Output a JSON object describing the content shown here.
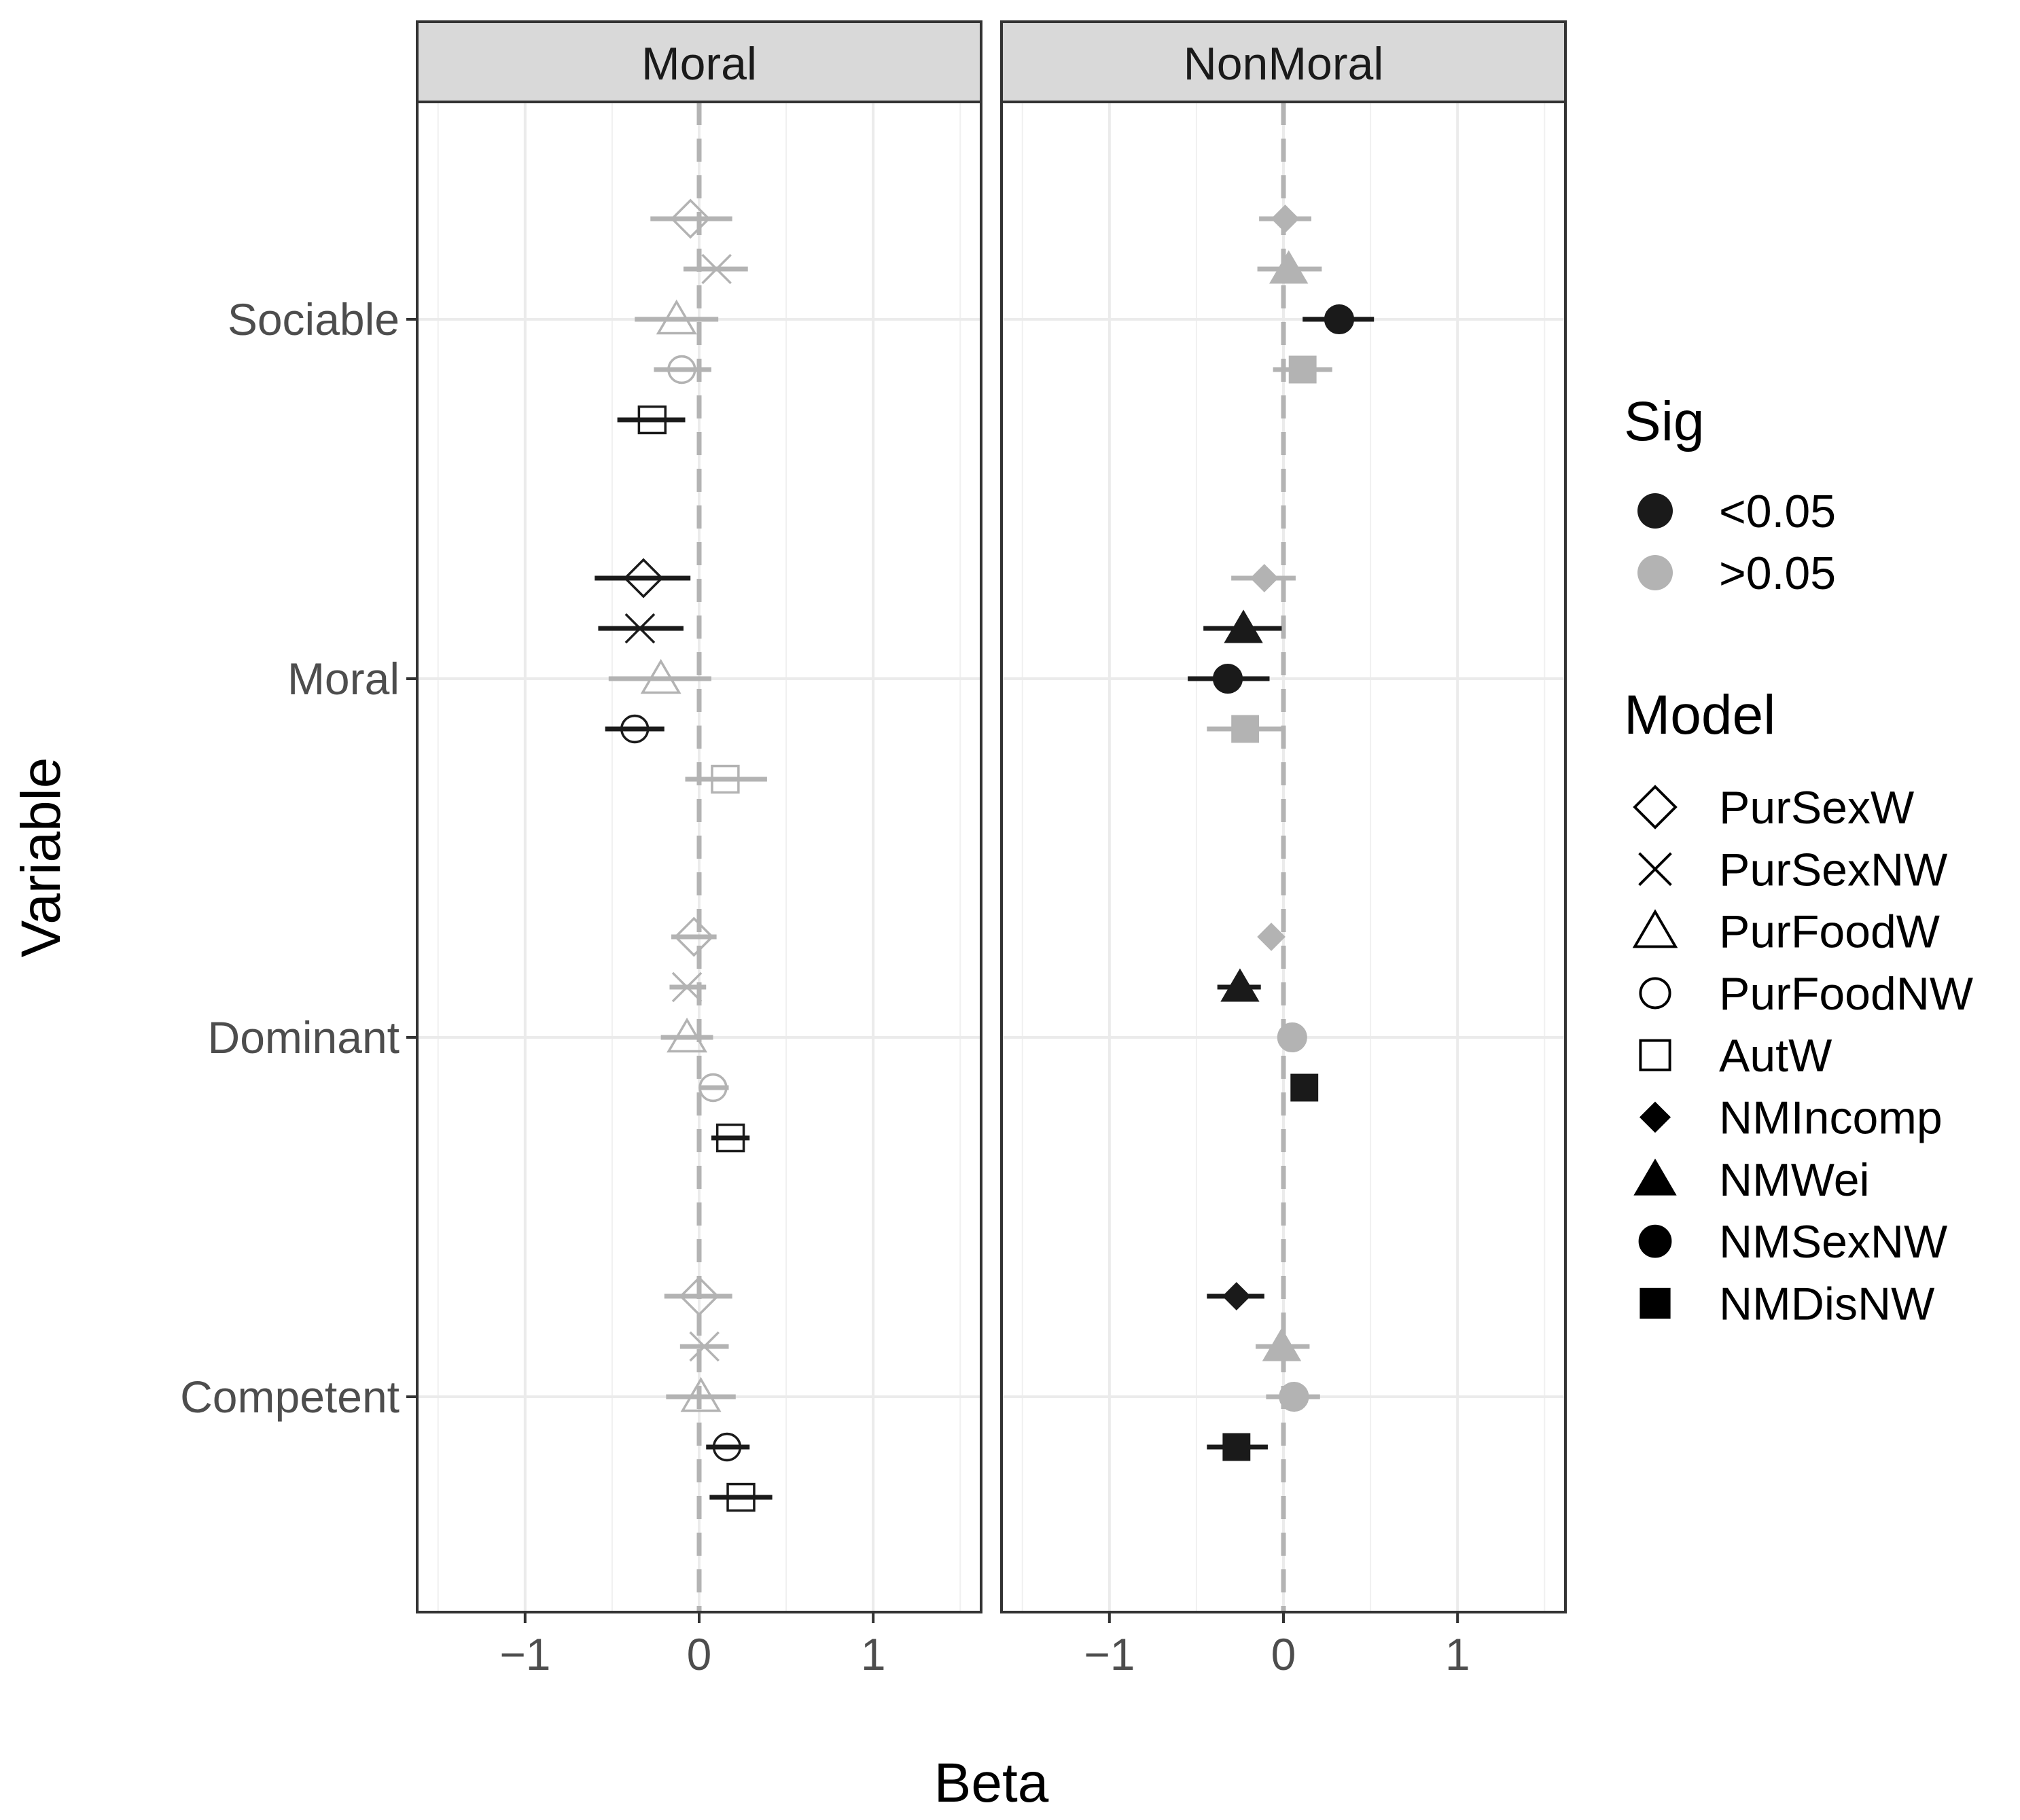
{
  "chart_data": {
    "type": "scatter",
    "subtype": "coefficient-plot-with-error-bars",
    "xlabel": "Beta",
    "ylabel": "Variable",
    "xlim": [
      -1.62,
      1.62
    ],
    "x_ticks": [
      -1,
      0,
      1
    ],
    "x_tick_labels": [
      "−1",
      "0",
      "1"
    ],
    "grid": true,
    "reference_line": 0,
    "categories": [
      "Sociable",
      "Moral",
      "Dominant",
      "Competent"
    ],
    "facets": [
      "Moral",
      "NonMoral"
    ],
    "legend": {
      "position": "right",
      "sig_title": "Sig",
      "sig_levels": [
        {
          "label": "<0.05",
          "color": "#1a1a1a"
        },
        {
          "label": ">0.05",
          "color": "#b3b3b3"
        }
      ],
      "model_title": "Model",
      "models": [
        {
          "label": "PurSexW",
          "shape": "diamond-open"
        },
        {
          "label": "PurSexNW",
          "shape": "cross"
        },
        {
          "label": "PurFoodW",
          "shape": "triangle-open"
        },
        {
          "label": "PurFoodNW",
          "shape": "circle-open"
        },
        {
          "label": "AutW",
          "shape": "square-open"
        },
        {
          "label": "NMIncomp",
          "shape": "diamond-filled"
        },
        {
          "label": "NMWei",
          "shape": "triangle-filled"
        },
        {
          "label": "NMSexNW",
          "shape": "circle-filled"
        },
        {
          "label": "NMDisNW",
          "shape": "square-filled"
        }
      ]
    },
    "panels": [
      {
        "facet": "Moral",
        "series": [
          {
            "name": "PurSexW",
            "shape": "diamond-open",
            "points": [
              {
                "variable": "Sociable",
                "beta": -0.05,
                "lo": -0.28,
                "hi": 0.19,
                "sig": ">0.05"
              },
              {
                "variable": "Moral",
                "beta": -0.32,
                "lo": -0.6,
                "hi": -0.05,
                "sig": "<0.05"
              },
              {
                "variable": "Dominant",
                "beta": -0.03,
                "lo": -0.16,
                "hi": 0.1,
                "sig": ">0.05"
              },
              {
                "variable": "Competent",
                "beta": 0.0,
                "lo": -0.2,
                "hi": 0.19,
                "sig": ">0.05"
              }
            ]
          },
          {
            "name": "PurSexNW",
            "shape": "cross",
            "points": [
              {
                "variable": "Sociable",
                "beta": 0.1,
                "lo": -0.09,
                "hi": 0.28,
                "sig": ">0.05"
              },
              {
                "variable": "Moral",
                "beta": -0.34,
                "lo": -0.58,
                "hi": -0.09,
                "sig": "<0.05"
              },
              {
                "variable": "Dominant",
                "beta": -0.07,
                "lo": -0.17,
                "hi": 0.04,
                "sig": ">0.05"
              },
              {
                "variable": "Competent",
                "beta": 0.03,
                "lo": -0.11,
                "hi": 0.17,
                "sig": ">0.05"
              }
            ]
          },
          {
            "name": "PurFoodW",
            "shape": "triangle-open",
            "points": [
              {
                "variable": "Sociable",
                "beta": -0.13,
                "lo": -0.37,
                "hi": 0.11,
                "sig": ">0.05"
              },
              {
                "variable": "Moral",
                "beta": -0.22,
                "lo": -0.52,
                "hi": 0.07,
                "sig": ">0.05"
              },
              {
                "variable": "Dominant",
                "beta": -0.07,
                "lo": -0.22,
                "hi": 0.08,
                "sig": ">0.05"
              },
              {
                "variable": "Competent",
                "beta": 0.01,
                "lo": -0.19,
                "hi": 0.21,
                "sig": ">0.05"
              }
            ]
          },
          {
            "name": "PurFoodNW",
            "shape": "circle-open",
            "points": [
              {
                "variable": "Sociable",
                "beta": -0.1,
                "lo": -0.26,
                "hi": 0.07,
                "sig": ">0.05"
              },
              {
                "variable": "Moral",
                "beta": -0.37,
                "lo": -0.54,
                "hi": -0.2,
                "sig": "<0.05"
              },
              {
                "variable": "Dominant",
                "beta": 0.08,
                "lo": 0.0,
                "hi": 0.17,
                "sig": ">0.05"
              },
              {
                "variable": "Competent",
                "beta": 0.16,
                "lo": 0.04,
                "hi": 0.29,
                "sig": "<0.05"
              }
            ]
          },
          {
            "name": "AutW",
            "shape": "square-open",
            "points": [
              {
                "variable": "Sociable",
                "beta": -0.27,
                "lo": -0.47,
                "hi": -0.08,
                "sig": "<0.05"
              },
              {
                "variable": "Moral",
                "beta": 0.15,
                "lo": -0.08,
                "hi": 0.39,
                "sig": ">0.05"
              },
              {
                "variable": "Dominant",
                "beta": 0.18,
                "lo": 0.07,
                "hi": 0.29,
                "sig": "<0.05"
              },
              {
                "variable": "Competent",
                "beta": 0.24,
                "lo": 0.06,
                "hi": 0.42,
                "sig": "<0.05"
              }
            ]
          }
        ]
      },
      {
        "facet": "NonMoral",
        "series": [
          {
            "name": "NMIncomp",
            "shape": "diamond-filled",
            "points": [
              {
                "variable": "Sociable",
                "beta": 0.01,
                "lo": -0.14,
                "hi": 0.16,
                "sig": ">0.05"
              },
              {
                "variable": "Moral",
                "beta": -0.11,
                "lo": -0.3,
                "hi": 0.07,
                "sig": ">0.05"
              },
              {
                "variable": "Dominant",
                "beta": -0.07,
                "lo": -0.07,
                "hi": -0.07,
                "sig": ">0.05"
              },
              {
                "variable": "Competent",
                "beta": -0.27,
                "lo": -0.44,
                "hi": -0.11,
                "sig": "<0.05"
              }
            ]
          },
          {
            "name": "NMWei",
            "shape": "triangle-filled",
            "points": [
              {
                "variable": "Sociable",
                "beta": 0.03,
                "lo": -0.15,
                "hi": 0.22,
                "sig": ">0.05"
              },
              {
                "variable": "Moral",
                "beta": -0.23,
                "lo": -0.46,
                "hi": -0.01,
                "sig": "<0.05"
              },
              {
                "variable": "Dominant",
                "beta": -0.25,
                "lo": -0.38,
                "hi": -0.13,
                "sig": "<0.05"
              },
              {
                "variable": "Competent",
                "beta": -0.01,
                "lo": -0.16,
                "hi": 0.15,
                "sig": ">0.05"
              }
            ]
          },
          {
            "name": "NMSexNW",
            "shape": "circle-filled",
            "points": [
              {
                "variable": "Sociable",
                "beta": 0.32,
                "lo": 0.11,
                "hi": 0.52,
                "sig": "<0.05"
              },
              {
                "variable": "Moral",
                "beta": -0.32,
                "lo": -0.55,
                "hi": -0.08,
                "sig": "<0.05"
              },
              {
                "variable": "Dominant",
                "beta": 0.05,
                "lo": -0.03,
                "hi": 0.13,
                "sig": ">0.05"
              },
              {
                "variable": "Competent",
                "beta": 0.06,
                "lo": -0.1,
                "hi": 0.21,
                "sig": ">0.05"
              }
            ]
          },
          {
            "name": "NMDisNW",
            "shape": "square-filled",
            "points": [
              {
                "variable": "Sociable",
                "beta": 0.11,
                "lo": -0.06,
                "hi": 0.28,
                "sig": ">0.05"
              },
              {
                "variable": "Moral",
                "beta": -0.22,
                "lo": -0.44,
                "hi": 0.0,
                "sig": ">0.05"
              },
              {
                "variable": "Dominant",
                "beta": 0.12,
                "lo": 0.12,
                "hi": 0.12,
                "sig": "<0.05"
              },
              {
                "variable": "Competent",
                "beta": -0.27,
                "lo": -0.44,
                "hi": -0.09,
                "sig": "<0.05"
              }
            ]
          }
        ]
      }
    ]
  }
}
